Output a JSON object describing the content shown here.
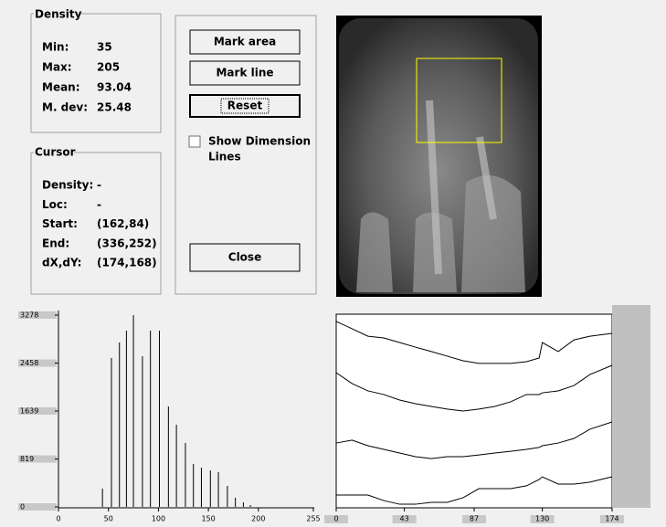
{
  "density": {
    "title": "Density",
    "rows": [
      {
        "label": "Min:",
        "value": 35
      },
      {
        "label": "Max:",
        "value": 205
      },
      {
        "label": "Mean:",
        "value": 93.04
      },
      {
        "label": "M. dev:",
        "value": 25.48
      }
    ]
  },
  "cursor": {
    "title": "Cursor",
    "rows": [
      {
        "label": "Density:",
        "value": "-"
      },
      {
        "label": "Loc:",
        "value": "-"
      },
      {
        "label": "Start:",
        "value": "(162,84)"
      },
      {
        "label": "End:",
        "value": "(336,252)"
      },
      {
        "label": "dX,dY:",
        "value": "(174,168)"
      }
    ]
  },
  "buttons": {
    "mark_area": "Mark area",
    "mark_line": "Mark line",
    "reset": "Reset",
    "close": "Close"
  },
  "checkbox": {
    "label": "Show Dimension",
    "label_line2": "Lines",
    "checked": false
  },
  "chart_data": [
    {
      "type": "histogram-bars",
      "x": [
        44,
        53,
        61,
        68,
        75,
        84,
        92,
        101,
        110,
        118,
        127,
        135,
        143,
        152,
        160,
        169,
        177,
        185,
        192
      ],
      "values": [
        312,
        2544,
        2810,
        3012,
        3278,
        2575,
        3012,
        3012,
        1717,
        1405,
        1093,
        734,
        671,
        624,
        593,
        359,
        156,
        78,
        31
      ],
      "color": "#000000",
      "xlim": [
        0,
        255
      ],
      "xticks": [
        0,
        50,
        100,
        150,
        200,
        255
      ],
      "ylim": [
        0,
        3278
      ],
      "yticks": [
        0,
        819,
        1639,
        2458,
        3278
      ]
    },
    {
      "type": "line",
      "x": [
        0,
        10,
        20,
        30,
        40,
        50,
        60,
        70,
        80,
        90,
        100,
        110,
        120,
        128,
        130,
        140,
        150,
        160,
        174
      ],
      "series": [
        {
          "color": "#000000",
          "values": [
            96.7,
            92.9,
            89.0,
            88.1,
            85.7,
            83.3,
            81.0,
            78.6,
            76.2,
            74.8,
            74.8,
            74.8,
            75.7,
            77.6,
            85.7,
            81.0,
            87.1,
            89.0,
            90.5
          ]
        },
        {
          "color": "#000000",
          "values": [
            70.0,
            64.3,
            60.5,
            58.6,
            55.7,
            53.8,
            52.4,
            51.0,
            50.0,
            51.0,
            52.4,
            54.8,
            58.6,
            58.6,
            59.5,
            60.5,
            63.3,
            69.0,
            73.8
          ]
        },
        {
          "color": "#000000",
          "values": [
            33.3,
            34.8,
            31.9,
            30.0,
            28.1,
            26.2,
            25.2,
            26.2,
            26.2,
            27.1,
            28.1,
            29.0,
            30.0,
            31.0,
            31.9,
            33.3,
            35.7,
            40.5,
            44.3
          ]
        },
        {
          "color": "#000000",
          "values": [
            6.2,
            6.2,
            6.2,
            3.3,
            1.4,
            1.4,
            2.4,
            2.4,
            4.8,
            9.5,
            9.5,
            9.5,
            11.0,
            14.3,
            15.7,
            11.9,
            11.9,
            12.9,
            15.7
          ]
        }
      ],
      "xlim": [
        0,
        174
      ],
      "xticks": [
        0,
        43,
        87,
        130,
        174
      ],
      "ylim": [
        0,
        100
      ]
    }
  ]
}
